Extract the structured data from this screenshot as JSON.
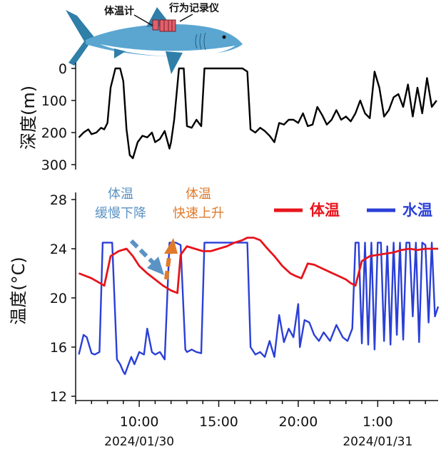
{
  "chart_data": [
    {
      "type": "line",
      "ylabel": "深度(m)",
      "yticks": [
        "0",
        "100",
        "200",
        "300"
      ],
      "ylim": [
        0,
        320
      ],
      "y_inverted": true,
      "xlim_hours": [
        6.0,
        28.8
      ],
      "series": [
        {
          "name": "深度",
          "color": "#000000",
          "x": [
            6.2,
            6.5,
            6.8,
            7.0,
            7.3,
            7.6,
            7.8,
            8.0,
            8.2,
            8.5,
            8.8,
            9.0,
            9.2,
            9.4,
            9.6,
            9.9,
            10.2,
            10.5,
            10.8,
            11.0,
            11.3,
            11.6,
            11.9,
            12.0,
            12.2,
            12.5,
            12.8,
            13.0,
            13.3,
            13.6,
            13.9,
            14.1,
            14.4,
            14.7,
            15.0,
            15.3,
            15.6,
            15.9,
            16.2,
            16.5,
            16.8,
            17.0,
            17.3,
            17.6,
            17.9,
            18.2,
            18.5,
            18.8,
            19.1,
            19.4,
            19.7,
            20.0,
            20.3,
            20.6,
            20.9,
            21.2,
            21.5,
            21.8,
            22.1,
            22.4,
            22.7,
            23.0,
            23.3,
            23.6,
            23.9,
            24.2,
            24.5,
            24.8,
            25.1,
            25.4,
            25.7,
            26.0,
            26.3,
            26.6,
            26.9,
            27.2,
            27.5,
            27.8,
            28.1,
            28.4,
            28.7
          ],
          "values": [
            215,
            200,
            190,
            205,
            200,
            185,
            190,
            170,
            60,
            0,
            0,
            40,
            190,
            270,
            280,
            230,
            210,
            215,
            200,
            230,
            220,
            195,
            250,
            230,
            160,
            0,
            0,
            180,
            185,
            160,
            180,
            0,
            0,
            0,
            0,
            0,
            0,
            0,
            0,
            0,
            10,
            190,
            200,
            185,
            195,
            210,
            230,
            170,
            175,
            160,
            160,
            170,
            140,
            180,
            175,
            120,
            145,
            175,
            160,
            130,
            160,
            150,
            165,
            140,
            100,
            140,
            155,
            10,
            60,
            150,
            130,
            90,
            80,
            120,
            50,
            150,
            60,
            140,
            30,
            120,
            100
          ]
        }
      ]
    },
    {
      "type": "line",
      "ylabel": "温度(°C)",
      "yticks": [
        "12",
        "16",
        "20",
        "24",
        "28"
      ],
      "ylim": [
        12,
        28
      ],
      "xlim_hours": [
        6.0,
        28.8
      ],
      "xticks": [
        "10:00",
        "15:00",
        "20:00",
        "1:00"
      ],
      "xtick_hours": [
        10,
        15,
        20,
        25
      ],
      "dates": [
        "2024/01/30",
        "2024/01/31"
      ],
      "legend": [
        "体温",
        "水温"
      ],
      "annotations": [
        "体温缓慢下降",
        "体温快速上升"
      ],
      "series": [
        {
          "name": "体温",
          "color": "#e8141b",
          "x": [
            6.2,
            6.6,
            7.0,
            7.4,
            7.8,
            8.2,
            8.7,
            9.2,
            9.6,
            10.0,
            10.5,
            11.0,
            11.5,
            12.0,
            12.4,
            12.6,
            13.0,
            13.5,
            14.0,
            14.5,
            15.0,
            15.5,
            16.0,
            16.5,
            16.8,
            17.2,
            17.6,
            18.0,
            18.5,
            19.0,
            19.5,
            19.8,
            20.2,
            20.6,
            21.0,
            21.5,
            22.0,
            22.5,
            23.0,
            23.3,
            23.6,
            24.0,
            24.5,
            25.0,
            25.5,
            26.0,
            26.5,
            27.0,
            27.5,
            28.0,
            28.5,
            28.8
          ],
          "values": [
            22.0,
            21.8,
            21.6,
            21.3,
            21.0,
            23.4,
            23.8,
            24.0,
            23.4,
            22.6,
            22.0,
            21.5,
            21.0,
            20.6,
            20.4,
            23.5,
            24.2,
            24.0,
            23.8,
            23.8,
            24.0,
            24.2,
            24.5,
            24.7,
            24.9,
            24.9,
            24.7,
            24.1,
            23.4,
            22.6,
            22.0,
            21.8,
            21.6,
            22.8,
            22.7,
            22.4,
            22.1,
            21.8,
            21.5,
            21.2,
            21.0,
            23.0,
            23.4,
            23.5,
            23.6,
            23.7,
            23.9,
            24.0,
            23.9,
            24.0,
            24.0,
            24.0
          ]
        },
        {
          "name": "水温",
          "color": "#2a3fd6",
          "x": [
            6.2,
            6.5,
            6.7,
            7.0,
            7.2,
            7.5,
            7.7,
            7.9,
            8.1,
            8.3,
            8.6,
            8.8,
            9.0,
            9.1,
            9.3,
            9.5,
            9.7,
            10.0,
            10.3,
            10.5,
            10.8,
            11.0,
            11.3,
            11.6,
            11.9,
            12.0,
            12.1,
            12.3,
            12.6,
            12.9,
            13.0,
            13.3,
            13.6,
            13.9,
            14.1,
            14.3,
            14.6,
            14.9,
            15.2,
            15.5,
            15.8,
            16.0,
            16.3,
            16.6,
            16.8,
            17.0,
            17.3,
            17.6,
            17.9,
            18.2,
            18.5,
            18.8,
            19.1,
            19.4,
            19.7,
            20.0,
            20.1,
            20.4,
            20.7,
            21.0,
            21.3,
            21.6,
            22.0,
            22.4,
            22.8,
            23.1,
            23.4,
            23.6,
            23.8,
            24.0,
            24.2,
            24.4,
            24.6,
            24.8,
            25.0,
            25.2,
            25.4,
            25.6,
            25.8,
            26.0,
            26.2,
            26.4,
            26.6,
            26.8,
            27.0,
            27.2,
            27.4,
            27.6,
            27.8,
            28.0,
            28.2,
            28.4,
            28.6,
            28.8
          ],
          "values": [
            15.4,
            17.0,
            16.8,
            15.5,
            15.4,
            15.6,
            24.5,
            24.5,
            24.5,
            24.5,
            15.0,
            14.6,
            14.0,
            13.8,
            14.5,
            15.2,
            14.6,
            15.6,
            15.4,
            17.5,
            15.6,
            15.4,
            15.6,
            15.0,
            24.5,
            24.5,
            24.5,
            24.5,
            24.3,
            15.8,
            15.6,
            15.8,
            15.6,
            15.5,
            24.5,
            24.5,
            24.5,
            24.5,
            24.5,
            24.5,
            24.5,
            24.5,
            24.5,
            24.5,
            24.5,
            16.0,
            15.4,
            15.6,
            15.2,
            16.5,
            15.2,
            18.6,
            16.4,
            17.5,
            16.8,
            19.5,
            16.0,
            18.2,
            18.0,
            17.0,
            16.5,
            17.2,
            16.5,
            17.8,
            16.8,
            16.5,
            17.5,
            24.5,
            24.5,
            16.3,
            24.5,
            16.2,
            24.5,
            15.8,
            24.5,
            24.5,
            16.5,
            24.2,
            16.2,
            24.5,
            17.0,
            24.5,
            16.6,
            24.5,
            24.5,
            18.5,
            24.5,
            16.4,
            24.5,
            24.3,
            18.0,
            24.5,
            18.5,
            19.3
          ]
        }
      ]
    }
  ],
  "illustration": {
    "labels": [
      "体温计",
      "行为记录仪"
    ]
  }
}
